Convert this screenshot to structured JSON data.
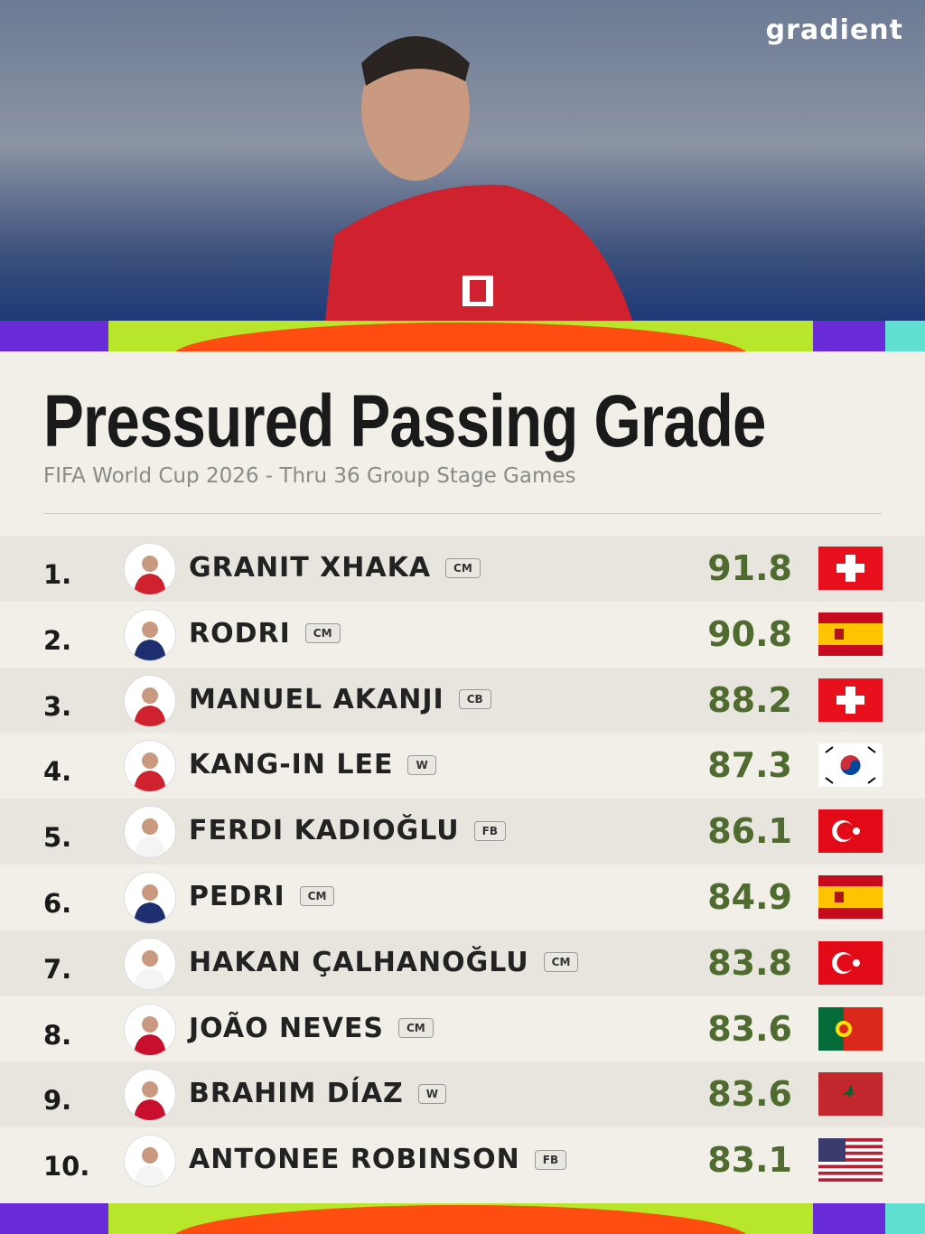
{
  "brand": "gradient",
  "title": "Pressured Passing Grade",
  "subtitle": "FIFA World Cup 2026 - Thru 36 Group Stage Games",
  "rows": [
    {
      "rank": "1.",
      "name": "GRANIT XHAKA",
      "position": "CM",
      "grade": 91.8
    },
    {
      "rank": "2.",
      "name": "RODRI",
      "position": "CM",
      "grade": 90.8
    },
    {
      "rank": "3.",
      "name": "MANUEL AKANJI",
      "position": "CB",
      "grade": 88.2
    },
    {
      "rank": "4.",
      "name": "KANG-IN LEE",
      "position": "W",
      "grade": 87.3
    },
    {
      "rank": "5.",
      "name": "FERDI KADIOĞLU",
      "position": "FB",
      "grade": 86.1
    },
    {
      "rank": "6.",
      "name": "PEDRI",
      "position": "CM",
      "grade": 84.9
    },
    {
      "rank": "7.",
      "name": "HAKAN ÇALHANOĞLU",
      "position": "CM",
      "grade": 83.8
    },
    {
      "rank": "8.",
      "name": "JOÃO NEVES",
      "position": "CM",
      "grade": 83.6
    },
    {
      "rank": "9.",
      "name": "BRAHIM DÍAZ",
      "position": "W",
      "grade": 83.6
    },
    {
      "rank": "10.",
      "name": "ANTONEE ROBINSON",
      "position": "FB",
      "grade": 83.1
    }
  ]
}
